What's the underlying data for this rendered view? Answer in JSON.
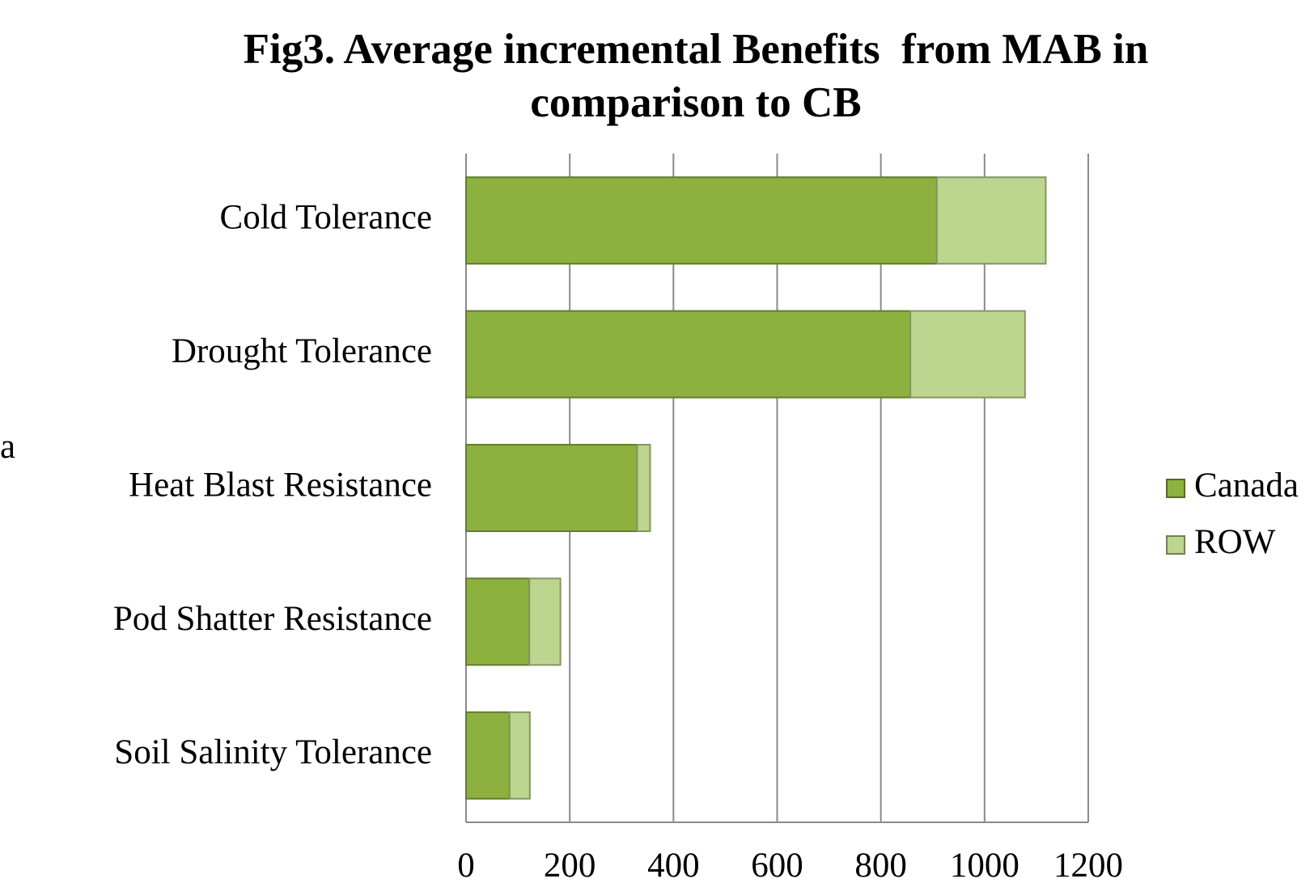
{
  "chart_data": {
    "type": "stacked_barh",
    "title": "Fig3. Average incremental Benefits  from MAB in comparison to CB",
    "categories": [
      "Cold Tolerance",
      "Drought Tolerance",
      "Heat Blast Resistance",
      "Pod Shatter Resistance",
      "Soil Salinity Tolerance"
    ],
    "series": [
      {
        "name": "Canada",
        "color": "#8db13f",
        "values": [
          908,
          857,
          330,
          122,
          84
        ]
      },
      {
        "name": "ROW",
        "color": "#bcd58f",
        "values": [
          210,
          221,
          25,
          60,
          39
        ]
      }
    ],
    "xlim": [
      0,
      1200
    ],
    "xticks": [
      0,
      200,
      400,
      600,
      800,
      1000,
      1200
    ],
    "grid": true,
    "legend": "right",
    "annotations": [
      "a"
    ]
  }
}
